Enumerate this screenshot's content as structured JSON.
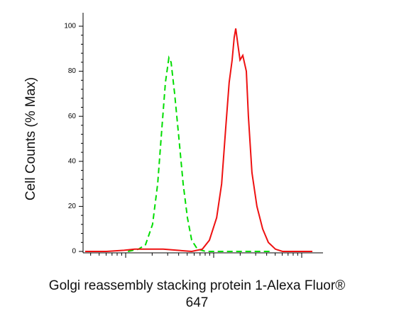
{
  "chart_data": {
    "type": "line",
    "y_label": "Cell Counts (% Max)",
    "x_label": [
      "Golgi reassembly stacking protein 1-Alexa Fluor®",
      "647"
    ],
    "xscale": "log",
    "xlim": [
      3.28,
      1746
    ],
    "ylim": [
      0,
      100
    ],
    "yticks": [
      0,
      20,
      40,
      60,
      80,
      100
    ],
    "series": [
      {
        "color": "#00dd00",
        "dash": true,
        "x": [
          10.6,
          14.0,
          16.8,
          20.2,
          23.1,
          25.8,
          28.3,
          31.0,
          32.8,
          36.0,
          40.3,
          45.0,
          50.3,
          56.2,
          65.3,
          81.5,
          434
        ],
        "values": [
          0,
          1,
          3,
          12,
          30,
          55,
          75,
          86,
          84,
          70,
          50,
          30,
          15,
          5,
          1,
          0,
          0
        ]
      },
      {
        "color": "#ee1111",
        "dash": false,
        "x": [
          3.47,
          6.05,
          9.6,
          12.7,
          18.5,
          26.7,
          38.8,
          56.2,
          74.3,
          89.5,
          108,
          123,
          137,
          150,
          162,
          171,
          178,
          188,
          199,
          214,
          235,
          248,
          272,
          310,
          360,
          418,
          503,
          605,
          1321
        ],
        "values": [
          0,
          0,
          0.5,
          1,
          1,
          1,
          0.5,
          0,
          1,
          5,
          15,
          30,
          55,
          75,
          85,
          95,
          99,
          92,
          85,
          87,
          80,
          60,
          35,
          20,
          10,
          4,
          1,
          0,
          0
        ]
      }
    ]
  }
}
